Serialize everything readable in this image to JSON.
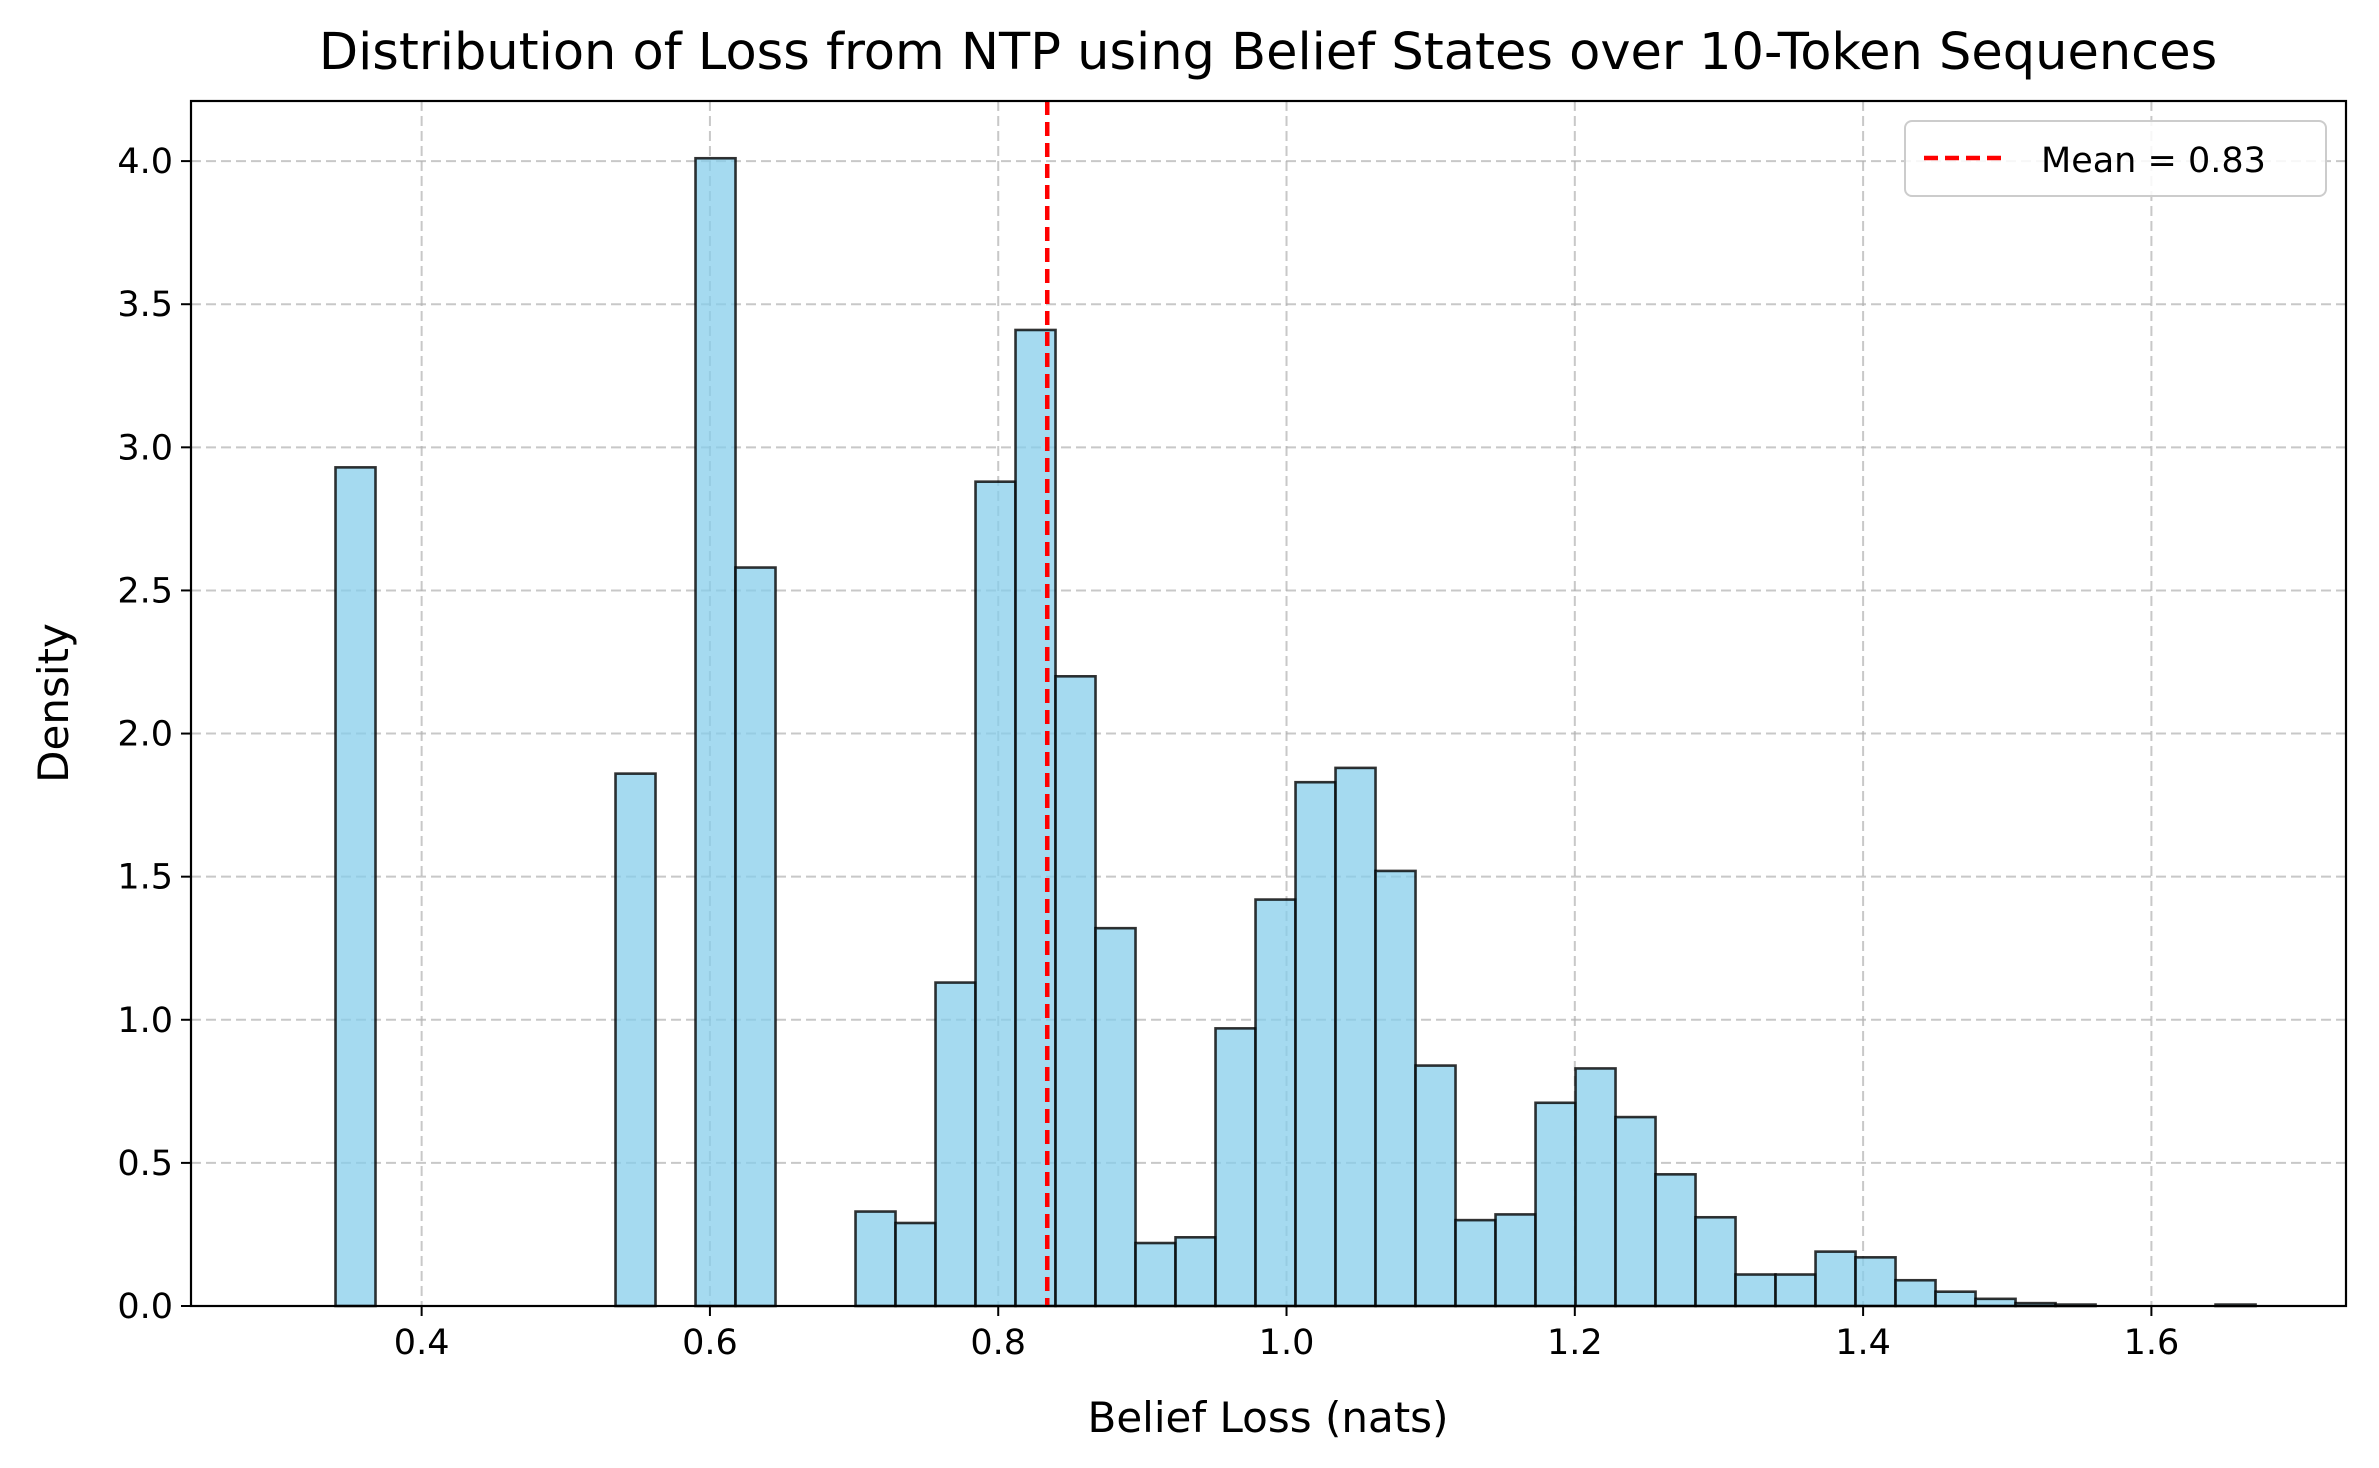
{
  "chart_data": {
    "type": "bar",
    "title": "Distribution of Loss from NTP using Belief States over 10-Token Sequences",
    "xlabel": "Belief Loss (nats)",
    "ylabel": "Density",
    "xlim": [
      0.24,
      1.735
    ],
    "ylim": [
      0,
      4.21
    ],
    "xticks": [
      0.4,
      0.6,
      0.8,
      1.0,
      1.2,
      1.4,
      1.6
    ],
    "xtick_labels": [
      "0.4",
      "0.6",
      "0.8",
      "1.0",
      "1.2",
      "1.4",
      "1.6"
    ],
    "yticks": [
      0.0,
      0.5,
      1.0,
      1.5,
      2.0,
      2.5,
      3.0,
      3.5,
      4.0
    ],
    "ytick_labels": [
      "0.0",
      "0.5",
      "1.0",
      "1.5",
      "2.0",
      "2.5",
      "3.0",
      "3.5",
      "4.0"
    ],
    "grid": true,
    "legend_position": "top-right",
    "bar_color": "#87ceeb",
    "bar_edge_color": "#000000",
    "mean_line_color": "#ff0000",
    "bin_start": 0.3125,
    "bin_width": 0.02775,
    "bin_densities": [
      0.0,
      2.93,
      0.0,
      0.0,
      0.0,
      0.0,
      0.0,
      0.0,
      1.86,
      0.0,
      4.01,
      2.58,
      0.0,
      0.0,
      0.33,
      0.29,
      1.13,
      2.88,
      3.41,
      2.2,
      1.32,
      0.22,
      0.24,
      0.97,
      1.42,
      1.83,
      1.88,
      1.52,
      0.84,
      0.3,
      0.32,
      0.71,
      0.83,
      0.66,
      0.46,
      0.31,
      0.11,
      0.11,
      0.19,
      0.17,
      0.09,
      0.05,
      0.025,
      0.01,
      0.005,
      0.0,
      0.0,
      0.0,
      0.005,
      0.0
    ],
    "mean": 0.834,
    "legend_label": "Mean = 0.83"
  }
}
